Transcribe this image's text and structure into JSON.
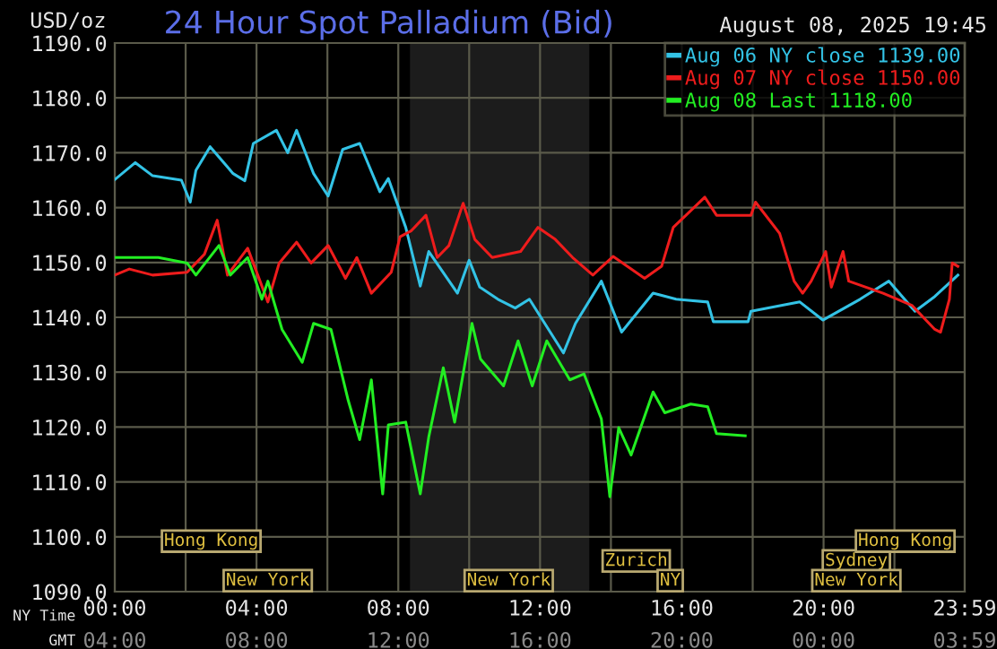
{
  "chart_data": {
    "type": "line",
    "title": "24 Hour Spot Palladium (Bid)",
    "subtitle": "August 08, 2025 19:45",
    "ylabel": "USD/oz",
    "xlabel": "NY Time",
    "x2label": "GMT",
    "xlim": [
      0,
      23.983
    ],
    "ylim": [
      1090,
      1190
    ],
    "xticks": [
      {
        "value": 0,
        "label": "00:00"
      },
      {
        "value": 2,
        "label": null
      },
      {
        "value": 4,
        "label": "04:00"
      },
      {
        "value": 6,
        "label": null
      },
      {
        "value": 8,
        "label": "08:00"
      },
      {
        "value": 10,
        "label": null
      },
      {
        "value": 12,
        "label": "12:00"
      },
      {
        "value": 14,
        "label": null
      },
      {
        "value": 16,
        "label": "16:00"
      },
      {
        "value": 18,
        "label": null
      },
      {
        "value": 20,
        "label": "20:00"
      },
      {
        "value": 22,
        "label": null
      },
      {
        "value": 23.983,
        "label": "23:59"
      }
    ],
    "x2lim": [
      "2025-08-08T04:00",
      "2025-08-09T03:59"
    ],
    "x2ticks": [
      {
        "value": "2025-08-08T04:00",
        "label": "04:00"
      },
      {
        "value": "2025-08-08T08:00",
        "label": "08:00"
      },
      {
        "value": "2025-08-08T12:00",
        "label": "12:00"
      },
      {
        "value": "2025-08-08T16:00",
        "label": "16:00"
      },
      {
        "value": "2025-08-08T20:00",
        "label": "20:00"
      },
      {
        "value": "2025-08-09T00:00",
        "label": "00:00"
      },
      {
        "value": "2025-08-09T03:59",
        "label": "03:59"
      }
    ],
    "yticks": [
      {
        "value": 1090,
        "label": "1090.0"
      },
      {
        "value": 1100,
        "label": "1100.0"
      },
      {
        "value": 1110,
        "label": "1110.0"
      },
      {
        "value": 1120,
        "label": "1120.0"
      },
      {
        "value": 1130,
        "label": "1130.0"
      },
      {
        "value": 1140,
        "label": "1140.0"
      },
      {
        "value": 1150,
        "label": "1150.0"
      },
      {
        "value": 1160,
        "label": "1160.0"
      },
      {
        "value": 1170,
        "label": "1170.0"
      },
      {
        "value": 1180,
        "label": "1180.0"
      },
      {
        "value": 1190,
        "label": "1190.0"
      }
    ],
    "grid": true,
    "legend": "top right",
    "marker": "none",
    "line_style": "solid",
    "bands": [
      {
        "axis": "x",
        "from": 8.33,
        "to": 13.39,
        "color": "#1c1c1c"
      }
    ],
    "series": [
      {
        "name": "Aug 06 NY close 1139.00",
        "color": "#33c3e6",
        "x": [
          0,
          0.58,
          1.07,
          1.88,
          2.13,
          2.29,
          2.69,
          3.34,
          3.67,
          3.91,
          4.56,
          4.88,
          5.13,
          5.61,
          6.02,
          6.43,
          6.91,
          7.48,
          7.72,
          8.21,
          8.62,
          8.86,
          9.67,
          10.0,
          10.3,
          10.81,
          11.3,
          11.7,
          12.66,
          13.0,
          13.73,
          14.3,
          15.19,
          15.84,
          16.73,
          16.89,
          17.87,
          17.95,
          19.33,
          19.98,
          21.03,
          21.84,
          22.58,
          23.14,
          23.79
        ],
        "values": [
          1165.1,
          1168.2,
          1165.8,
          1165.0,
          1161.0,
          1166.8,
          1171.1,
          1166.2,
          1164.9,
          1171.7,
          1174.1,
          1170.0,
          1174.1,
          1166.2,
          1162.1,
          1170.6,
          1171.7,
          1162.9,
          1165.3,
          1156.4,
          1145.7,
          1152.0,
          1144.4,
          1150.4,
          1145.5,
          1143.3,
          1141.7,
          1143.3,
          1133.5,
          1138.9,
          1146.6,
          1137.3,
          1144.4,
          1143.3,
          1142.8,
          1139.2,
          1139.2,
          1141.1,
          1142.8,
          1139.5,
          1143.3,
          1146.6,
          1141.1,
          1143.8,
          1147.7
        ]
      },
      {
        "name": "Aug 07 NY close 1150.00",
        "color": "#ee1c1c",
        "x": [
          0,
          0.41,
          1.07,
          2.04,
          2.53,
          2.89,
          3.18,
          3.75,
          4.32,
          4.64,
          5.13,
          5.54,
          6.02,
          6.51,
          6.83,
          7.24,
          7.8,
          8.05,
          8.37,
          8.78,
          9.1,
          9.43,
          9.83,
          10.16,
          10.65,
          11.45,
          11.94,
          12.43,
          12.92,
          13.49,
          14.06,
          14.95,
          15.43,
          15.76,
          16.65,
          16.98,
          17.95,
          18.08,
          18.76,
          19.17,
          19.41,
          19.65,
          20.06,
          20.22,
          20.55,
          20.71,
          21.68,
          22.49,
          23.14,
          23.3,
          23.55,
          23.63,
          23.79
        ],
        "values": [
          1147.7,
          1148.8,
          1147.7,
          1148.2,
          1151.5,
          1157.7,
          1147.7,
          1152.6,
          1142.8,
          1149.9,
          1153.7,
          1149.9,
          1153.1,
          1147.1,
          1150.9,
          1144.4,
          1148.2,
          1154.7,
          1155.8,
          1158.6,
          1150.9,
          1153.1,
          1160.8,
          1154.2,
          1150.9,
          1152.0,
          1156.4,
          1154.2,
          1150.9,
          1147.7,
          1151.1,
          1147.1,
          1149.3,
          1156.4,
          1161.9,
          1158.6,
          1158.6,
          1161.0,
          1155.3,
          1146.6,
          1144.4,
          1146.6,
          1152.0,
          1145.5,
          1152.0,
          1146.6,
          1144.4,
          1142.2,
          1137.8,
          1137.3,
          1143.3,
          1149.9,
          1149.3
        ]
      },
      {
        "name": "Aug 08 Last 1118.00",
        "color": "#22ee22",
        "x": [
          0,
          1.23,
          2.04,
          2.29,
          2.94,
          3.26,
          3.75,
          4.15,
          4.32,
          4.72,
          5.29,
          5.61,
          6.1,
          6.59,
          6.91,
          7.24,
          7.56,
          7.72,
          8.21,
          8.62,
          8.86,
          9.27,
          9.59,
          10.08,
          10.32,
          10.97,
          11.38,
          11.78,
          12.19,
          12.84,
          13.24,
          13.73,
          13.97,
          14.22,
          14.57,
          15.19,
          15.52,
          16.25,
          16.73,
          16.98,
          17.79
        ],
        "values": [
          1150.9,
          1150.9,
          1149.9,
          1147.7,
          1153.1,
          1147.7,
          1150.9,
          1143.3,
          1146.6,
          1137.8,
          1131.8,
          1138.9,
          1137.8,
          1124.8,
          1117.7,
          1128.6,
          1107.8,
          1120.4,
          1120.9,
          1107.8,
          1118.2,
          1130.8,
          1120.9,
          1138.9,
          1132.4,
          1127.5,
          1135.7,
          1127.5,
          1135.7,
          1128.6,
          1129.7,
          1121.5,
          1107.3,
          1119.9,
          1114.9,
          1126.4,
          1122.6,
          1124.2,
          1123.7,
          1118.8,
          1118.4
        ]
      }
    ],
    "annotations": [
      "Hong Kong",
      "Zurich",
      "New York",
      "New York",
      "NY",
      "Sydney",
      "Hong Kong",
      "New York"
    ]
  }
}
